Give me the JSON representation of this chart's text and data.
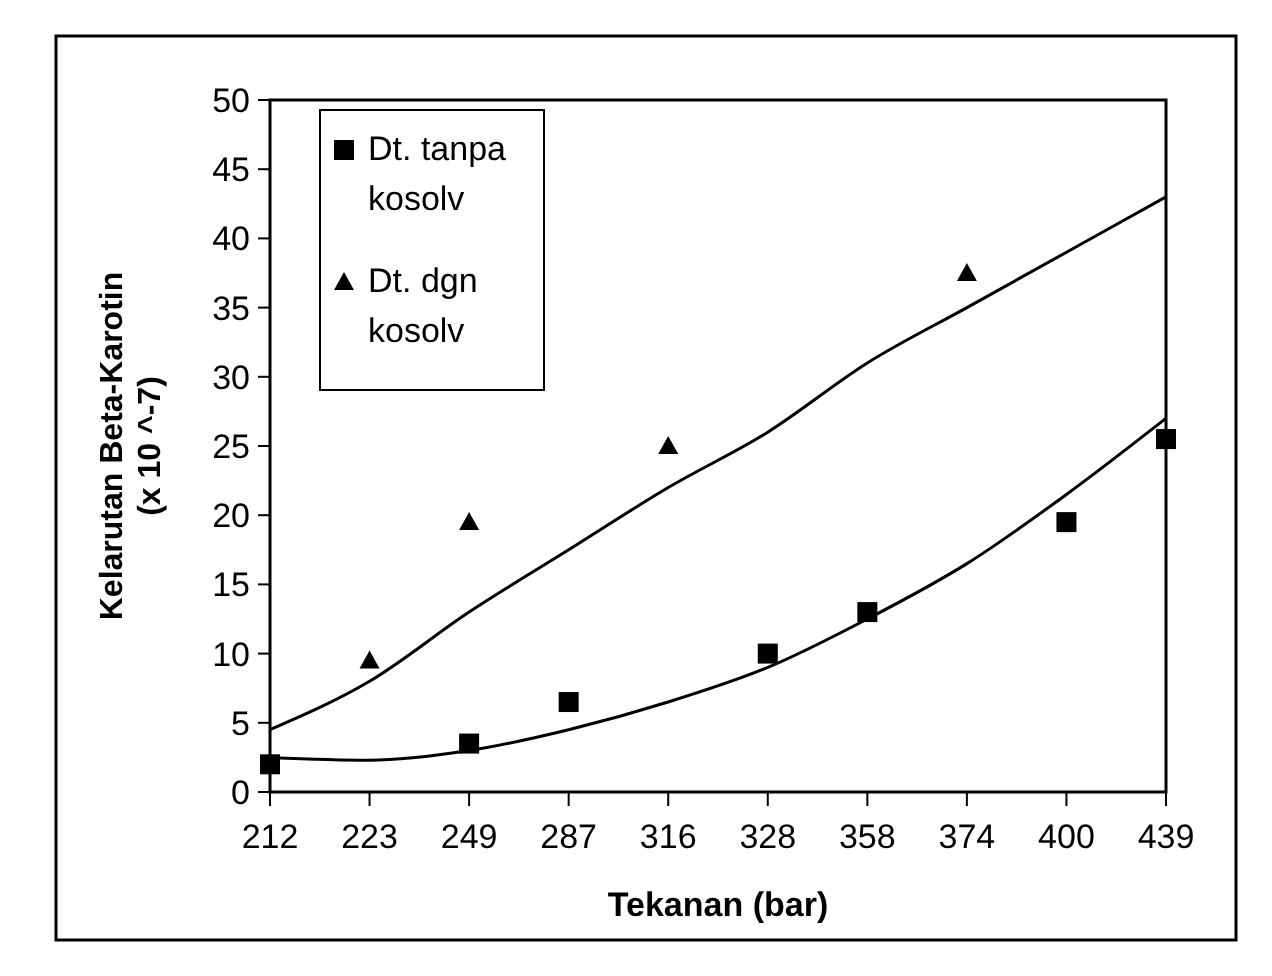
{
  "chart_data": {
    "type": "scatter",
    "xlabel": "Tekanan (bar)",
    "ylabel": "Kelarutan Beta-Karotin\n(x 10 ^-7)",
    "categories": [
      "212",
      "223",
      "249",
      "287",
      "316",
      "328",
      "358",
      "374",
      "400",
      "439"
    ],
    "ylim": [
      0,
      50
    ],
    "yticks": [
      0,
      5,
      10,
      15,
      20,
      25,
      30,
      35,
      40,
      45,
      50
    ],
    "legend": "top left",
    "grid": false,
    "series": [
      {
        "name": "Dt. tanpa kosolv",
        "color": "#000000",
        "marker": "square",
        "values": [
          2,
          null,
          3.5,
          6.5,
          null,
          10,
          13,
          null,
          19.5,
          25.5
        ]
      },
      {
        "name": "Dt. dgn kosolv",
        "color": "#000000",
        "marker": "triangle",
        "values": [
          null,
          9.5,
          19.5,
          null,
          25,
          null,
          null,
          37.5,
          null,
          null
        ]
      },
      {
        "type": "line",
        "color": "#000000",
        "marker": "none",
        "values": [
          2.5,
          2.3,
          3,
          4.5,
          6.5,
          9,
          12.5,
          16.5,
          21.5,
          27
        ]
      },
      {
        "type": "line",
        "color": "#000000",
        "marker": "none",
        "values": [
          4.5,
          8,
          13,
          17.5,
          22,
          26,
          31,
          35,
          39,
          43
        ]
      }
    ]
  }
}
